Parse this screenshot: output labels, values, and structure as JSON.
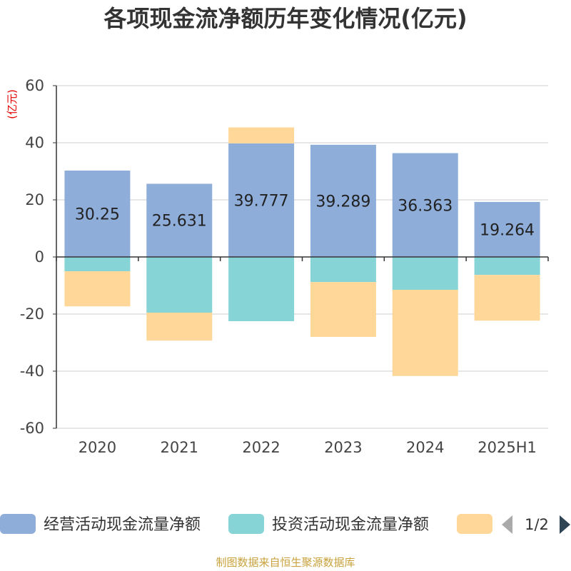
{
  "title": "各项现金流净额历年变化情况(亿元)",
  "source": "制图数据来自恒生聚源数据库",
  "legend": {
    "page": "1/2"
  },
  "chart_data": {
    "type": "bar",
    "stacked": true,
    "unit": "(亿元)",
    "categories": [
      "2020",
      "2021",
      "2022",
      "2023",
      "2024",
      "2025H1"
    ],
    "ylim": [
      -60,
      60
    ],
    "yticks": [
      60,
      40,
      20,
      0,
      -20,
      -40,
      -60
    ],
    "grid": true,
    "legend_position": "bottom",
    "series": [
      {
        "name": "经营活动现金流量净额",
        "color": "#8eadd9",
        "values": [
          30.25,
          25.631,
          39.777,
          39.289,
          36.363,
          19.264
        ],
        "labels": [
          "30.25",
          "25.631",
          "39.777",
          "39.289",
          "36.363",
          "19.264"
        ]
      },
      {
        "name": "投资活动现金流量净额",
        "color": "#86d4d6",
        "values": [
          -5,
          -19.5,
          -22.5,
          -8.8,
          -11.5,
          -6.3
        ]
      },
      {
        "name": "",
        "color": "#ffd899",
        "values": [
          -12.3,
          -9.8,
          5.6,
          -19.2,
          -30.2,
          -16
        ]
      }
    ]
  }
}
